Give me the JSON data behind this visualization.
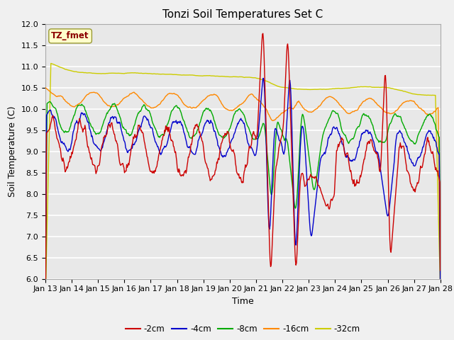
{
  "title": "Tonzi Soil Temperatures Set C",
  "xlabel": "Time",
  "ylabel": "Soil Temperature (C)",
  "ylim": [
    6.0,
    12.0
  ],
  "yticks": [
    6.0,
    6.5,
    7.0,
    7.5,
    8.0,
    8.5,
    9.0,
    9.5,
    10.0,
    10.5,
    11.0,
    11.5,
    12.0
  ],
  "xtick_labels": [
    "Jan 13",
    "Jan 14",
    "Jan 15",
    "Jan 16",
    "Jan 17",
    "Jan 18",
    "Jan 19",
    "Jan 20",
    "Jan 21",
    "Jan 22",
    "Jan 23",
    "Jan 24",
    "Jan 25",
    "Jan 26",
    "Jan 27",
    "Jan 28"
  ],
  "series_colors": [
    "#cc0000",
    "#0000cc",
    "#00aa00",
    "#ff8800",
    "#cccc00"
  ],
  "series_labels": [
    "-2cm",
    "-4cm",
    "-8cm",
    "-16cm",
    "-32cm"
  ],
  "legend_label": "TZ_fmet",
  "bg_color": "#e8e8e8",
  "fig_bg_color": "#f0f0f0",
  "title_fontsize": 11,
  "axis_fontsize": 9,
  "tick_fontsize": 8
}
